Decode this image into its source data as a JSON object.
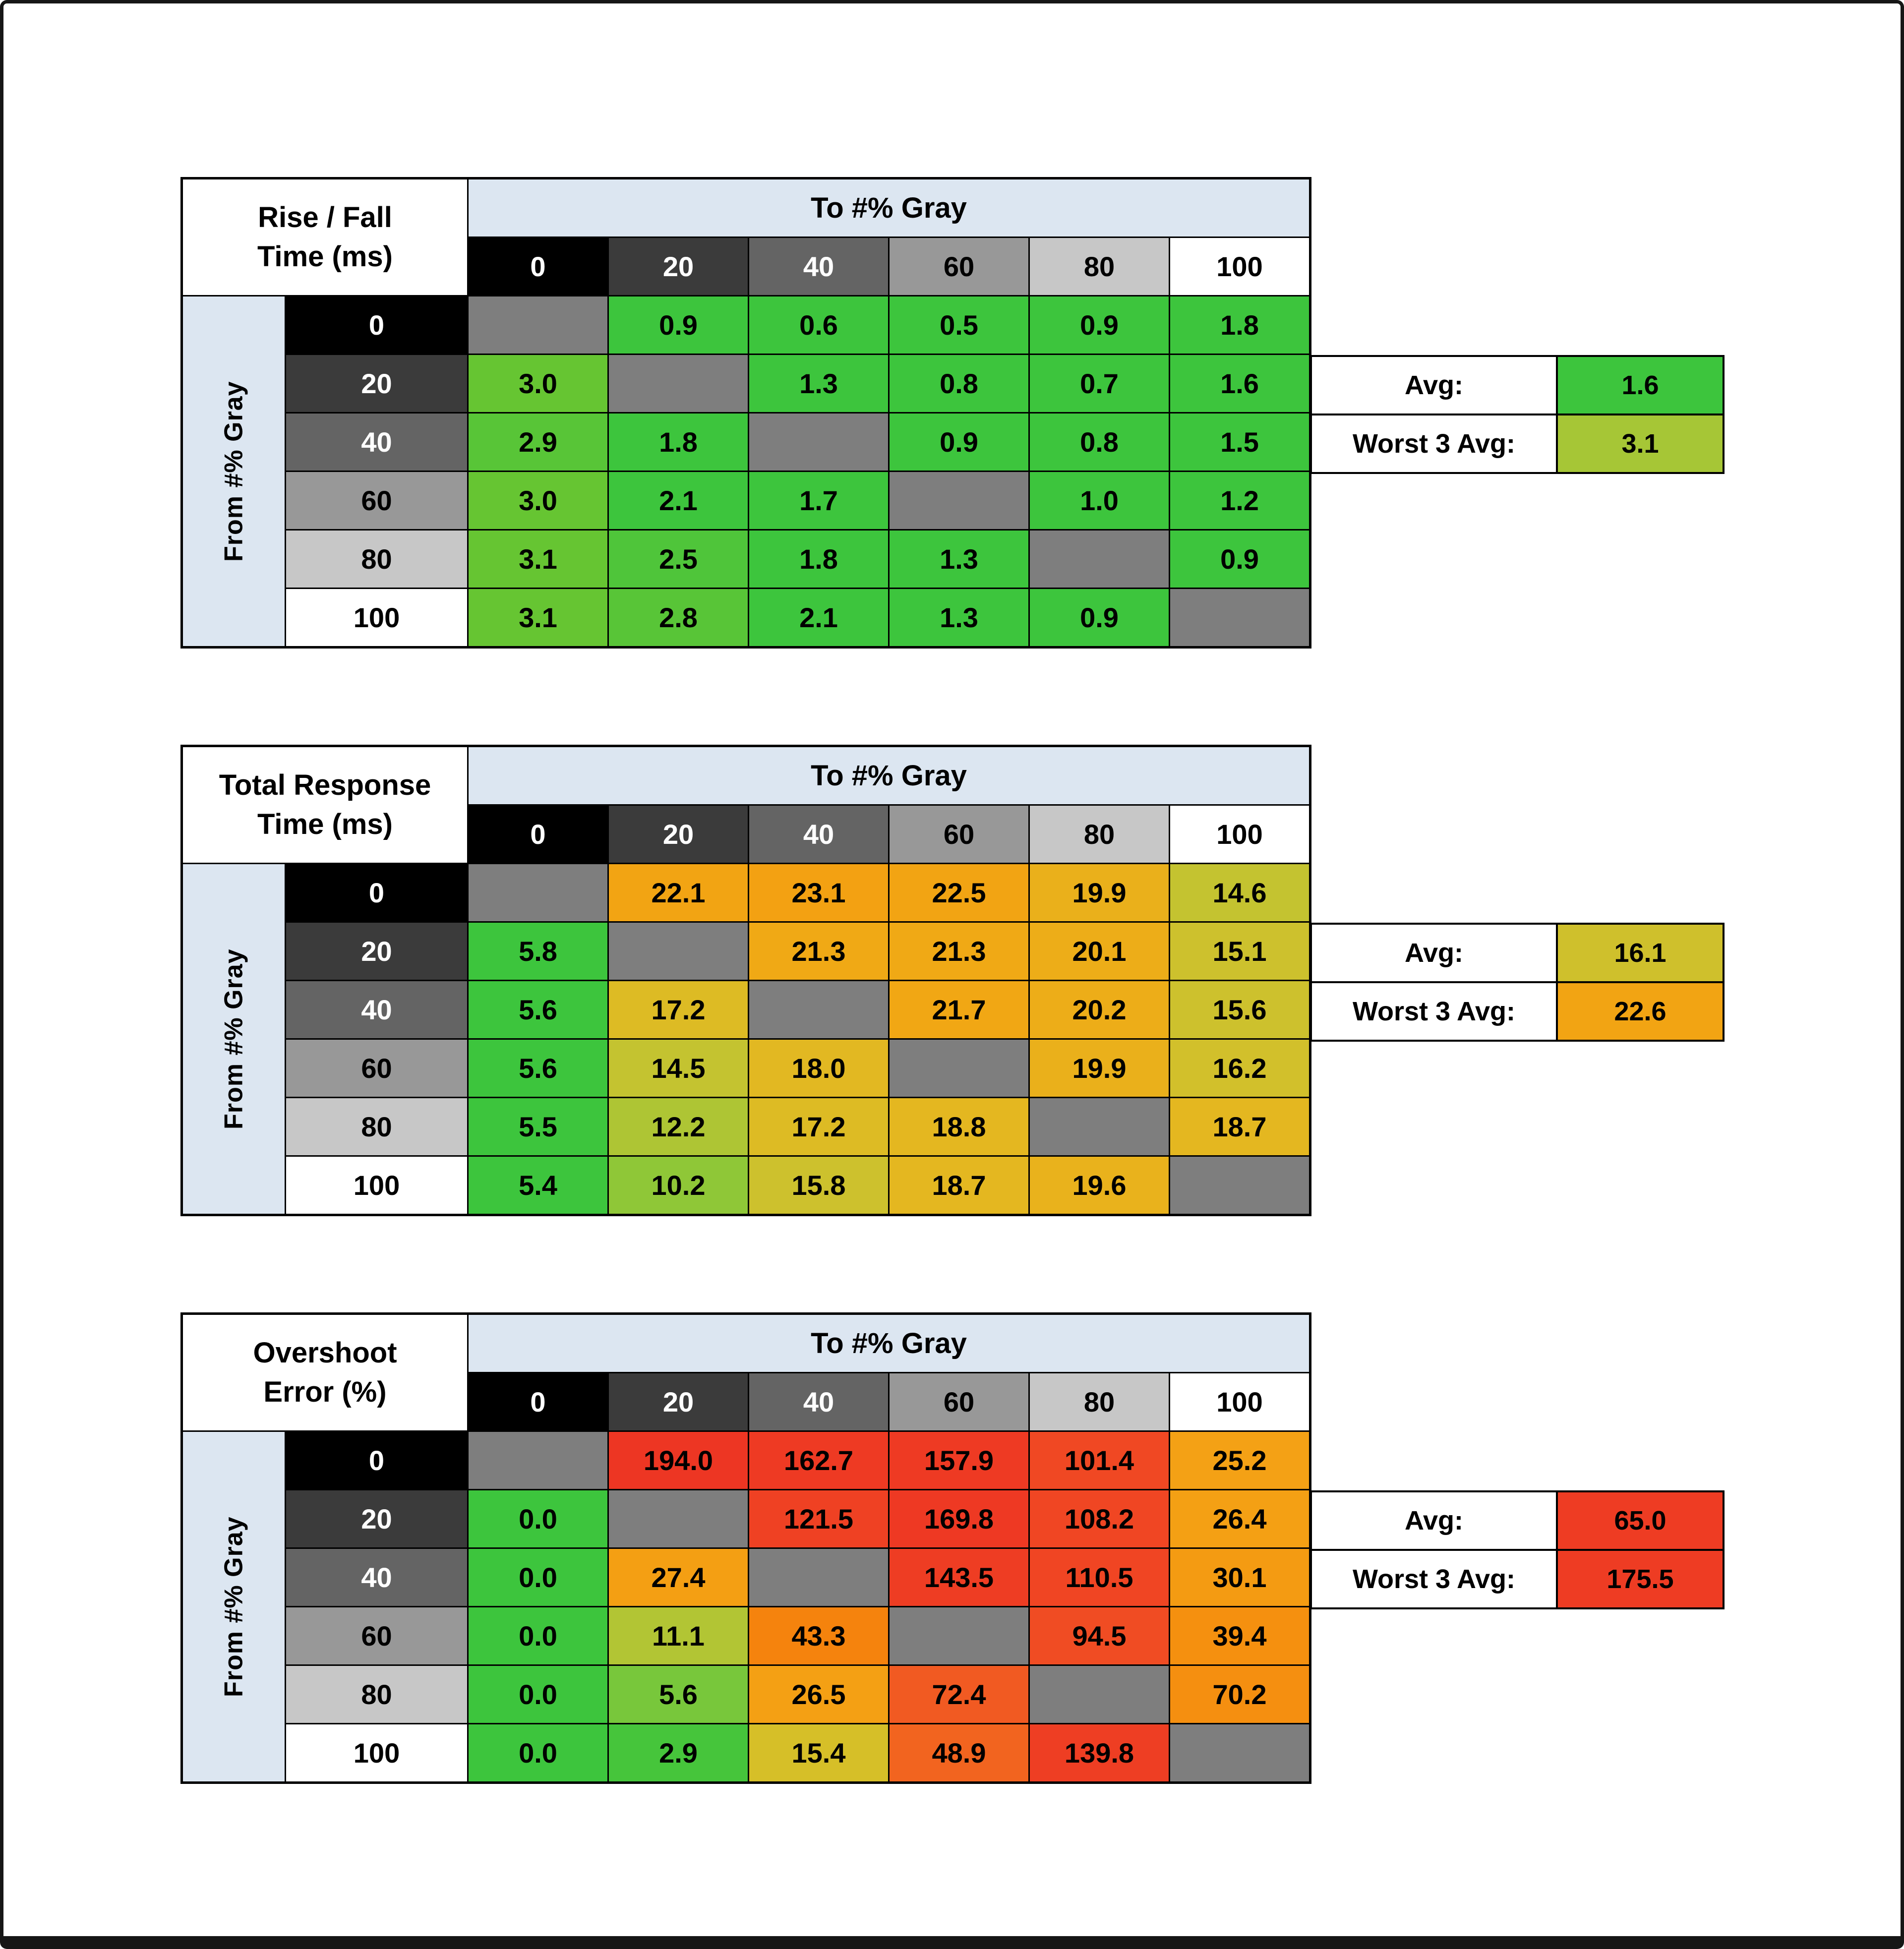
{
  "page": {
    "background": "#ffffff",
    "frame_color": "#161616"
  },
  "header_fill": "#dce6f1",
  "diag_color": "#7e7e7e",
  "gray_levels": [
    {
      "label": "0",
      "bg": "#000000",
      "fg": "#ffffff"
    },
    {
      "label": "20",
      "bg": "#3b3b3b",
      "fg": "#ffffff"
    },
    {
      "label": "40",
      "bg": "#646464",
      "fg": "#ffffff"
    },
    {
      "label": "60",
      "bg": "#989898",
      "fg": "#000000"
    },
    {
      "label": "80",
      "bg": "#c7c7c7",
      "fg": "#000000"
    },
    {
      "label": "100",
      "bg": "#ffffff",
      "fg": "#000000"
    }
  ],
  "chart_data": [
    {
      "type": "heatmap",
      "title": "Rise / Fall Time (ms)",
      "title_lines": [
        "Rise / Fall",
        "Time (ms)"
      ],
      "col_axis": "To #% Gray",
      "row_axis": "From #% Gray",
      "columns": [
        "0",
        "20",
        "40",
        "60",
        "80",
        "100"
      ],
      "rows": [
        {
          "from": "0",
          "cells": [
            {
              "v": "",
              "c": "#7e7e7e"
            },
            {
              "v": "0.9",
              "c": "#3dc53d"
            },
            {
              "v": "0.6",
              "c": "#3dc53d"
            },
            {
              "v": "0.5",
              "c": "#3dc53d"
            },
            {
              "v": "0.9",
              "c": "#3dc53d"
            },
            {
              "v": "1.8",
              "c": "#3dc53d"
            }
          ]
        },
        {
          "from": "20",
          "cells": [
            {
              "v": "3.0",
              "c": "#66c532"
            },
            {
              "v": "",
              "c": "#7e7e7e"
            },
            {
              "v": "1.3",
              "c": "#3dc53d"
            },
            {
              "v": "0.8",
              "c": "#3dc53d"
            },
            {
              "v": "0.7",
              "c": "#3dc53d"
            },
            {
              "v": "1.6",
              "c": "#3dc53d"
            }
          ]
        },
        {
          "from": "40",
          "cells": [
            {
              "v": "2.9",
              "c": "#58c537"
            },
            {
              "v": "1.8",
              "c": "#3dc53d"
            },
            {
              "v": "",
              "c": "#7e7e7e"
            },
            {
              "v": "0.9",
              "c": "#3dc53d"
            },
            {
              "v": "0.8",
              "c": "#3dc53d"
            },
            {
              "v": "1.5",
              "c": "#3dc53d"
            }
          ]
        },
        {
          "from": "60",
          "cells": [
            {
              "v": "3.0",
              "c": "#66c532"
            },
            {
              "v": "2.1",
              "c": "#3dc53d"
            },
            {
              "v": "1.7",
              "c": "#3dc53d"
            },
            {
              "v": "",
              "c": "#7e7e7e"
            },
            {
              "v": "1.0",
              "c": "#3dc53d"
            },
            {
              "v": "1.2",
              "c": "#3dc53d"
            }
          ]
        },
        {
          "from": "80",
          "cells": [
            {
              "v": "3.1",
              "c": "#66c532"
            },
            {
              "v": "2.5",
              "c": "#4fc53a"
            },
            {
              "v": "1.8",
              "c": "#3dc53d"
            },
            {
              "v": "1.3",
              "c": "#3dc53d"
            },
            {
              "v": "",
              "c": "#7e7e7e"
            },
            {
              "v": "0.9",
              "c": "#3dc53d"
            }
          ]
        },
        {
          "from": "100",
          "cells": [
            {
              "v": "3.1",
              "c": "#66c532"
            },
            {
              "v": "2.8",
              "c": "#58c537"
            },
            {
              "v": "2.1",
              "c": "#3dc53d"
            },
            {
              "v": "1.3",
              "c": "#3dc53d"
            },
            {
              "v": "0.9",
              "c": "#3dc53d"
            },
            {
              "v": "",
              "c": "#7e7e7e"
            }
          ]
        }
      ],
      "summary": {
        "avg_label": "Avg:",
        "avg_value": "1.6",
        "avg_color": "#3dc53d",
        "worst_label": "Worst 3 Avg:",
        "worst_value": "3.1",
        "worst_color": "#a6c636"
      }
    },
    {
      "type": "heatmap",
      "title": "Total Response Time (ms)",
      "title_lines": [
        "Total Response",
        "Time (ms)"
      ],
      "col_axis": "To #% Gray",
      "row_axis": "From #% Gray",
      "columns": [
        "0",
        "20",
        "40",
        "60",
        "80",
        "100"
      ],
      "rows": [
        {
          "from": "0",
          "cells": [
            {
              "v": "",
              "c": "#7e7e7e"
            },
            {
              "v": "22.1",
              "c": "#f2a413"
            },
            {
              "v": "23.1",
              "c": "#f3a112"
            },
            {
              "v": "22.5",
              "c": "#f2a413"
            },
            {
              "v": "19.9",
              "c": "#eab01b"
            },
            {
              "v": "14.6",
              "c": "#c4c330"
            }
          ]
        },
        {
          "from": "20",
          "cells": [
            {
              "v": "5.8",
              "c": "#3dc53d"
            },
            {
              "v": "",
              "c": "#7e7e7e"
            },
            {
              "v": "21.3",
              "c": "#f0a915"
            },
            {
              "v": "21.3",
              "c": "#f0a915"
            },
            {
              "v": "20.1",
              "c": "#edad18"
            },
            {
              "v": "15.1",
              "c": "#cdc12d"
            }
          ]
        },
        {
          "from": "40",
          "cells": [
            {
              "v": "5.6",
              "c": "#3dc53d"
            },
            {
              "v": "17.2",
              "c": "#ddbb24"
            },
            {
              "v": "",
              "c": "#7e7e7e"
            },
            {
              "v": "21.7",
              "c": "#f1a714"
            },
            {
              "v": "20.2",
              "c": "#edad18"
            },
            {
              "v": "15.6",
              "c": "#cdc12d"
            }
          ]
        },
        {
          "from": "60",
          "cells": [
            {
              "v": "5.6",
              "c": "#3dc53d"
            },
            {
              "v": "14.5",
              "c": "#c4c330"
            },
            {
              "v": "18.0",
              "c": "#e2b822"
            },
            {
              "v": "",
              "c": "#7e7e7e"
            },
            {
              "v": "19.9",
              "c": "#eab01b"
            },
            {
              "v": "16.2",
              "c": "#d2c02b"
            }
          ]
        },
        {
          "from": "80",
          "cells": [
            {
              "v": "5.5",
              "c": "#3dc53d"
            },
            {
              "v": "12.2",
              "c": "#aec534"
            },
            {
              "v": "17.2",
              "c": "#ddbb24"
            },
            {
              "v": "18.8",
              "c": "#e4b720"
            },
            {
              "v": "",
              "c": "#7e7e7e"
            },
            {
              "v": "18.7",
              "c": "#e4b720"
            }
          ]
        },
        {
          "from": "100",
          "cells": [
            {
              "v": "5.4",
              "c": "#3dc53d"
            },
            {
              "v": "10.2",
              "c": "#8fc737"
            },
            {
              "v": "15.8",
              "c": "#cdc12d"
            },
            {
              "v": "18.7",
              "c": "#e4b720"
            },
            {
              "v": "19.6",
              "c": "#e9b21c"
            },
            {
              "v": "",
              "c": "#7e7e7e"
            }
          ]
        }
      ],
      "summary": {
        "avg_label": "Avg:",
        "avg_value": "16.1",
        "avg_color": "#cfc02c",
        "worst_label": "Worst 3 Avg:",
        "worst_value": "22.6",
        "worst_color": "#f2a413"
      }
    },
    {
      "type": "heatmap",
      "title": "Overshoot Error (%)",
      "title_lines": [
        "Overshoot",
        "Error (%)"
      ],
      "col_axis": "To #% Gray",
      "row_axis": "From #% Gray",
      "columns": [
        "0",
        "20",
        "40",
        "60",
        "80",
        "100"
      ],
      "rows": [
        {
          "from": "0",
          "cells": [
            {
              "v": "",
              "c": "#7e7e7e"
            },
            {
              "v": "194.0",
              "c": "#ed3623"
            },
            {
              "v": "162.7",
              "c": "#ee3a23"
            },
            {
              "v": "157.9",
              "c": "#ee3a23"
            },
            {
              "v": "101.4",
              "c": "#f04823"
            },
            {
              "v": "25.2",
              "c": "#f4a115"
            }
          ]
        },
        {
          "from": "20",
          "cells": [
            {
              "v": "0.0",
              "c": "#3dc53d"
            },
            {
              "v": "",
              "c": "#7e7e7e"
            },
            {
              "v": "121.5",
              "c": "#ef4123"
            },
            {
              "v": "169.8",
              "c": "#ee3923"
            },
            {
              "v": "108.2",
              "c": "#f04623"
            },
            {
              "v": "26.4",
              "c": "#f4a014"
            }
          ]
        },
        {
          "from": "40",
          "cells": [
            {
              "v": "0.0",
              "c": "#3dc53d"
            },
            {
              "v": "27.4",
              "c": "#f49f13"
            },
            {
              "v": "",
              "c": "#7e7e7e"
            },
            {
              "v": "143.5",
              "c": "#ee3d23"
            },
            {
              "v": "110.5",
              "c": "#f04523"
            },
            {
              "v": "30.1",
              "c": "#f49b12"
            }
          ]
        },
        {
          "from": "60",
          "cells": [
            {
              "v": "0.0",
              "c": "#3dc53d"
            },
            {
              "v": "11.1",
              "c": "#b2c534"
            },
            {
              "v": "43.3",
              "c": "#f5830d"
            },
            {
              "v": "",
              "c": "#7e7e7e"
            },
            {
              "v": "94.5",
              "c": "#f04c23"
            },
            {
              "v": "39.4",
              "c": "#f5900f"
            }
          ]
        },
        {
          "from": "80",
          "cells": [
            {
              "v": "0.0",
              "c": "#3dc53d"
            },
            {
              "v": "5.6",
              "c": "#78c73b"
            },
            {
              "v": "26.5",
              "c": "#f4a014"
            },
            {
              "v": "72.4",
              "c": "#f15a22"
            },
            {
              "v": "",
              "c": "#7e7e7e"
            },
            {
              "v": "70.2",
              "c": "#f58f10"
            }
          ]
        },
        {
          "from": "100",
          "cells": [
            {
              "v": "0.0",
              "c": "#3dc53d"
            },
            {
              "v": "2.9",
              "c": "#46c53b"
            },
            {
              "v": "15.4",
              "c": "#d6bf28"
            },
            {
              "v": "48.9",
              "c": "#f2641f"
            },
            {
              "v": "139.8",
              "c": "#ee3e23"
            },
            {
              "v": "",
              "c": "#7e7e7e"
            }
          ]
        }
      ],
      "summary": {
        "avg_label": "Avg:",
        "avg_value": "65.0",
        "avg_color": "#ee3c23",
        "worst_label": "Worst 3 Avg:",
        "worst_value": "175.5",
        "worst_color": "#ee3c23"
      }
    }
  ]
}
